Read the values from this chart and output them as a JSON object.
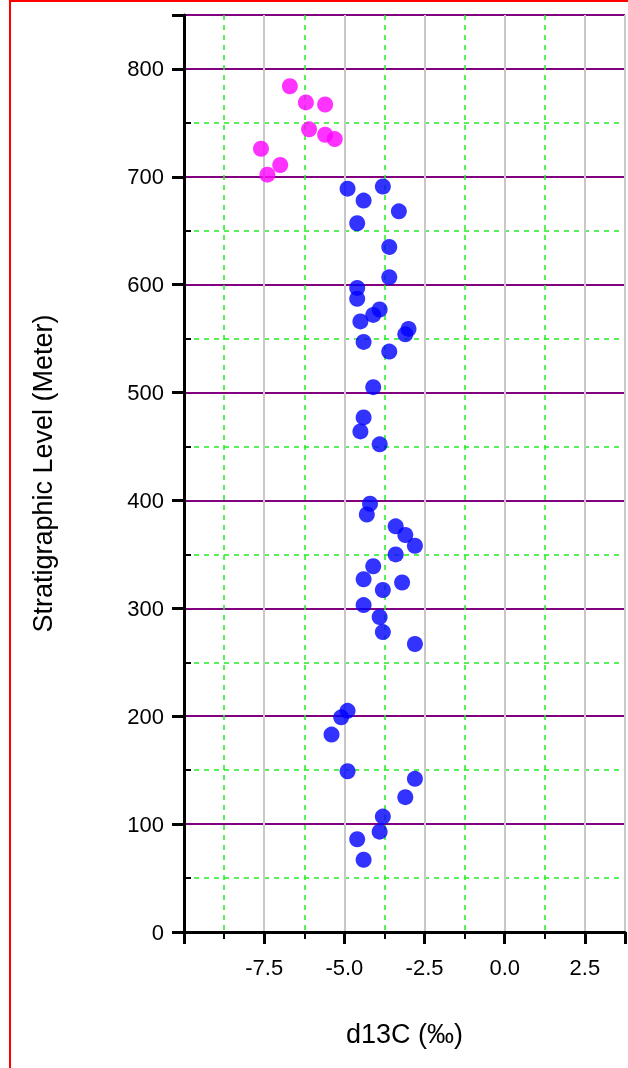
{
  "chart_data": {
    "type": "scatter",
    "xlabel": "d13C (‰)",
    "ylabel": "Stratigraphic Level (Meter)",
    "xlim": [
      -10,
      3.75
    ],
    "ylim": [
      0,
      850
    ],
    "xticks": [
      {
        "value": -10,
        "label": null
      },
      {
        "value": -8.75,
        "label": null
      },
      {
        "value": -7.5,
        "label": "-7.5"
      },
      {
        "value": -6.25,
        "label": null
      },
      {
        "value": -5,
        "label": "-5.0"
      },
      {
        "value": -3.75,
        "label": null
      },
      {
        "value": -2.5,
        "label": "-2.5"
      },
      {
        "value": -1.25,
        "label": null
      },
      {
        "value": 0,
        "label": "0.0"
      },
      {
        "value": 1.25,
        "label": null
      },
      {
        "value": 2.5,
        "label": "2.5"
      },
      {
        "value": 3.75,
        "label": null
      }
    ],
    "yticks": [
      0,
      {
        "value": 50,
        "label": null
      },
      100,
      {
        "value": 150,
        "label": null
      },
      200,
      {
        "value": 250,
        "label": null
      },
      300,
      {
        "value": 350,
        "label": null
      },
      400,
      {
        "value": 450,
        "label": null
      },
      500,
      {
        "value": 550,
        "label": null
      },
      600,
      {
        "value": 650,
        "label": null
      },
      700,
      {
        "value": 750,
        "label": null
      },
      800,
      {
        "value": 850,
        "label": null
      }
    ],
    "grid": true,
    "marker": "circle",
    "series": [
      {
        "color": "#ff00ff",
        "x": [
          -6.7,
          -6.2,
          -5.6,
          -6.1,
          -5.6,
          -5.3,
          -7.6,
          -7.0,
          -7.4
        ],
        "values": [
          784,
          769,
          767,
          744,
          739,
          735,
          726,
          711,
          702
        ]
      },
      {
        "color": "#0000ff",
        "x": [
          -4.9,
          -3.8,
          -4.4,
          -3.3,
          -4.6,
          -3.6,
          -3.6,
          -4.6,
          -4.6,
          -3.9,
          -4.1,
          -4.5,
          -3.0,
          -3.1,
          -4.4,
          -3.6,
          -4.1,
          -4.4,
          -4.5,
          -3.9,
          -4.2,
          -4.3,
          -3.4,
          -3.1,
          -2.8,
          -3.4,
          -4.1,
          -4.4,
          -3.2,
          -3.8,
          -4.4,
          -3.9,
          -3.8,
          -2.8,
          -4.9,
          -5.1,
          -5.4,
          -4.9,
          -2.8,
          -3.1,
          -3.8,
          -3.9,
          -4.6,
          -4.4
        ],
        "values": [
          689,
          691,
          678,
          668,
          657,
          635,
          607,
          597,
          587,
          577,
          572,
          566,
          559,
          554,
          547,
          538,
          505,
          477,
          464,
          452,
          397,
          387,
          376,
          368,
          358,
          350,
          339,
          327,
          324,
          317,
          303,
          292,
          278,
          267,
          205,
          199,
          183,
          149,
          142,
          125,
          107,
          93,
          86,
          67
        ]
      }
    ]
  }
}
